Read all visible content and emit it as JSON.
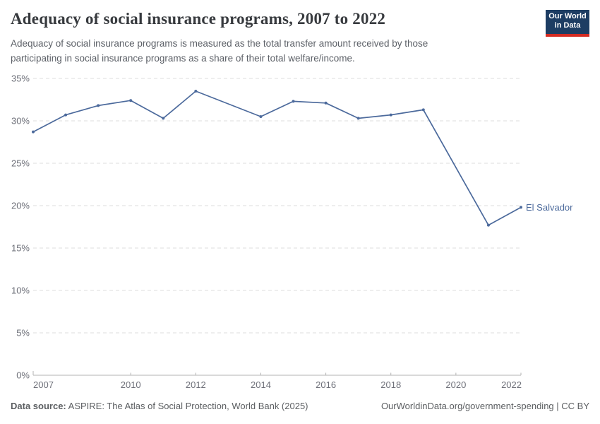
{
  "header": {
    "title": "Adequacy of social insurance programs, 2007 to 2022",
    "subtitle_lines": [
      "Adequacy of social insurance programs is measured as the total transfer amount received by those",
      "participating in social insurance programs as a share of their total welfare/income."
    ],
    "logo": {
      "line1": "Our World",
      "line2": "in Data",
      "bg_color": "#1d3d63",
      "bar_color": "#d42b22"
    }
  },
  "chart_data": {
    "type": "line",
    "title": "Adequacy of social insurance programs, 2007 to 2022",
    "xlabel": "",
    "ylabel": "",
    "xlim": [
      2007,
      2022
    ],
    "ylim": [
      0,
      35
    ],
    "grid": "horizontal-dashed",
    "legend_position": "end-of-line-label",
    "x_ticks": [
      2007,
      2010,
      2012,
      2014,
      2016,
      2018,
      2020,
      2022
    ],
    "y_ticks": [
      {
        "value": 0,
        "label": "0%"
      },
      {
        "value": 5,
        "label": "5%"
      },
      {
        "value": 10,
        "label": "10%"
      },
      {
        "value": 15,
        "label": "15%"
      },
      {
        "value": 20,
        "label": "20%"
      },
      {
        "value": 25,
        "label": "25%"
      },
      {
        "value": 30,
        "label": "30%"
      },
      {
        "value": 35,
        "label": "35%"
      }
    ],
    "missing_years": [
      2013,
      2020
    ],
    "series": [
      {
        "name": "El Salvador",
        "color": "#4c6a9c",
        "points": [
          {
            "year": 2007,
            "value": 28.7
          },
          {
            "year": 2008,
            "value": 30.7
          },
          {
            "year": 2009,
            "value": 31.8
          },
          {
            "year": 2010,
            "value": 32.4
          },
          {
            "year": 2011,
            "value": 30.3
          },
          {
            "year": 2012,
            "value": 33.5
          },
          {
            "year": 2014,
            "value": 30.5
          },
          {
            "year": 2015,
            "value": 32.3
          },
          {
            "year": 2016,
            "value": 32.1
          },
          {
            "year": 2017,
            "value": 30.3
          },
          {
            "year": 2018,
            "value": 30.7
          },
          {
            "year": 2019,
            "value": 31.3
          },
          {
            "year": 2021,
            "value": 17.7
          },
          {
            "year": 2022,
            "value": 19.8
          }
        ]
      }
    ],
    "colors": {
      "line": "#4c6a9c",
      "grid": "#dddddd",
      "axis": "#b3b3b3",
      "tick_text": "#6e7079"
    }
  },
  "footer": {
    "source_label": "Data source:",
    "source_text": "ASPIRE: The Atlas of Social Protection, World Bank (2025)",
    "link_text": "OurWorldinData.org/government-spending | CC BY"
  }
}
